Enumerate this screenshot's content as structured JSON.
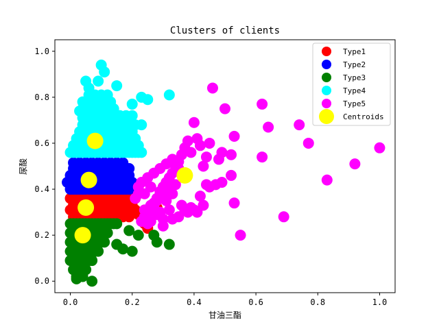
{
  "chart_data": {
    "type": "scatter",
    "title": "Clusters of clients",
    "xlabel": "甘油三酯",
    "ylabel": "尿酸",
    "xlim": [
      -0.05,
      1.05
    ],
    "ylim": [
      -0.05,
      1.05
    ],
    "xticks": [
      "0.0",
      "0.2",
      "0.4",
      "0.6",
      "0.8",
      "1.0"
    ],
    "yticks": [
      "0.0",
      "0.2",
      "0.4",
      "0.6",
      "0.8",
      "1.0"
    ],
    "grid": false,
    "legend_position": "top-right",
    "series": [
      {
        "name": "Type1",
        "color": "#ff0000",
        "x": [
          0.0,
          0.01,
          0.02,
          0.03,
          0.04,
          0.05,
          0.06,
          0.07,
          0.08,
          0.09,
          0.1,
          0.11,
          0.12,
          0.13,
          0.14,
          0.15,
          0.16,
          0.17,
          0.18,
          0.19,
          0.2,
          0.21,
          0.01,
          0.02,
          0.03,
          0.04,
          0.05,
          0.06,
          0.07,
          0.08,
          0.09,
          0.1,
          0.11,
          0.12,
          0.13,
          0.14,
          0.15,
          0.16,
          0.17,
          0.18,
          0.19,
          0.2,
          0.0,
          0.01,
          0.02,
          0.03,
          0.04,
          0.05,
          0.06,
          0.07,
          0.08,
          0.09,
          0.1,
          0.11,
          0.12,
          0.13,
          0.14,
          0.15,
          0.16,
          0.17,
          0.18,
          0.19,
          0.2,
          0.21,
          0.01,
          0.03,
          0.05,
          0.07,
          0.09,
          0.11,
          0.13,
          0.15,
          0.17,
          0.19,
          0.02,
          0.04,
          0.06,
          0.08,
          0.1,
          0.12,
          0.14,
          0.16,
          0.18,
          0.2,
          0.24,
          0.25,
          0.22,
          0.28
        ],
        "y": [
          0.36,
          0.36,
          0.36,
          0.36,
          0.36,
          0.36,
          0.36,
          0.36,
          0.36,
          0.36,
          0.36,
          0.36,
          0.36,
          0.36,
          0.36,
          0.36,
          0.36,
          0.36,
          0.36,
          0.36,
          0.36,
          0.36,
          0.33,
          0.33,
          0.33,
          0.33,
          0.33,
          0.33,
          0.33,
          0.33,
          0.33,
          0.33,
          0.33,
          0.33,
          0.33,
          0.33,
          0.33,
          0.33,
          0.33,
          0.33,
          0.33,
          0.33,
          0.31,
          0.31,
          0.31,
          0.31,
          0.31,
          0.31,
          0.31,
          0.31,
          0.31,
          0.31,
          0.31,
          0.31,
          0.31,
          0.31,
          0.31,
          0.31,
          0.31,
          0.31,
          0.31,
          0.31,
          0.31,
          0.31,
          0.28,
          0.28,
          0.28,
          0.28,
          0.28,
          0.28,
          0.28,
          0.28,
          0.28,
          0.28,
          0.38,
          0.38,
          0.38,
          0.38,
          0.38,
          0.38,
          0.38,
          0.38,
          0.38,
          0.38,
          0.25,
          0.23,
          0.29,
          0.32
        ]
      },
      {
        "name": "Type2",
        "color": "#0000ff",
        "x": [
          -0.01,
          0.01,
          0.02,
          0.03,
          0.04,
          0.05,
          0.06,
          0.07,
          0.08,
          0.09,
          0.1,
          0.11,
          0.12,
          0.13,
          0.14,
          0.15,
          0.16,
          0.17,
          0.18,
          0.19,
          0.2,
          0.0,
          0.01,
          0.02,
          0.03,
          0.04,
          0.05,
          0.06,
          0.07,
          0.08,
          0.09,
          0.1,
          0.11,
          0.12,
          0.13,
          0.14,
          0.15,
          0.16,
          0.17,
          0.18,
          0.19,
          0.0,
          0.01,
          0.02,
          0.03,
          0.04,
          0.05,
          0.06,
          0.07,
          0.08,
          0.09,
          0.1,
          0.11,
          0.12,
          0.13,
          0.14,
          0.15,
          0.16,
          0.17,
          0.18,
          0.19,
          0.01,
          0.03,
          0.05,
          0.07,
          0.09,
          0.11,
          0.13,
          0.15,
          0.17,
          0.19,
          0.01,
          0.03,
          0.05,
          0.07,
          0.09,
          0.11,
          0.13,
          0.15,
          0.17
        ],
        "y": [
          0.43,
          0.43,
          0.43,
          0.43,
          0.43,
          0.43,
          0.43,
          0.43,
          0.43,
          0.43,
          0.43,
          0.43,
          0.43,
          0.43,
          0.43,
          0.43,
          0.43,
          0.43,
          0.43,
          0.43,
          0.43,
          0.46,
          0.46,
          0.46,
          0.46,
          0.46,
          0.46,
          0.46,
          0.46,
          0.46,
          0.46,
          0.46,
          0.46,
          0.46,
          0.46,
          0.46,
          0.46,
          0.46,
          0.46,
          0.46,
          0.46,
          0.4,
          0.4,
          0.4,
          0.4,
          0.4,
          0.4,
          0.4,
          0.4,
          0.4,
          0.4,
          0.4,
          0.4,
          0.4,
          0.4,
          0.4,
          0.4,
          0.4,
          0.4,
          0.4,
          0.4,
          0.49,
          0.49,
          0.49,
          0.49,
          0.49,
          0.49,
          0.49,
          0.49,
          0.49,
          0.49,
          0.515,
          0.515,
          0.515,
          0.515,
          0.515,
          0.515,
          0.515,
          0.515,
          0.515
        ]
      },
      {
        "name": "Type3",
        "color": "#008000",
        "x": [
          0.0,
          0.01,
          0.02,
          0.03,
          0.04,
          0.05,
          0.06,
          0.07,
          0.08,
          0.09,
          0.1,
          0.11,
          0.12,
          0.13,
          0.14,
          0.15,
          0.0,
          0.01,
          0.02,
          0.03,
          0.04,
          0.05,
          0.06,
          0.07,
          0.08,
          0.09,
          0.1,
          0.11,
          0.12,
          0.0,
          0.01,
          0.02,
          0.03,
          0.04,
          0.05,
          0.06,
          0.07,
          0.08,
          0.09,
          0.1,
          0.11,
          0.0,
          0.01,
          0.02,
          0.03,
          0.04,
          0.05,
          0.06,
          0.07,
          0.08,
          0.09,
          0.0,
          0.01,
          0.02,
          0.03,
          0.04,
          0.05,
          0.06,
          0.07,
          0.01,
          0.02,
          0.03,
          0.04,
          0.05,
          0.02,
          0.03,
          0.04,
          0.02,
          0.07,
          0.19,
          0.22,
          0.27,
          0.28,
          0.32,
          0.2,
          0.17,
          0.15
        ],
        "y": [
          0.25,
          0.25,
          0.25,
          0.25,
          0.25,
          0.25,
          0.25,
          0.25,
          0.25,
          0.25,
          0.25,
          0.25,
          0.25,
          0.25,
          0.25,
          0.25,
          0.21,
          0.21,
          0.21,
          0.21,
          0.21,
          0.21,
          0.21,
          0.21,
          0.21,
          0.21,
          0.21,
          0.21,
          0.21,
          0.17,
          0.17,
          0.17,
          0.17,
          0.17,
          0.17,
          0.17,
          0.17,
          0.17,
          0.17,
          0.17,
          0.17,
          0.13,
          0.13,
          0.13,
          0.13,
          0.13,
          0.13,
          0.13,
          0.13,
          0.13,
          0.13,
          0.09,
          0.09,
          0.09,
          0.09,
          0.09,
          0.09,
          0.09,
          0.09,
          0.05,
          0.05,
          0.05,
          0.05,
          0.05,
          0.02,
          0.02,
          0.02,
          0.01,
          0.0,
          0.22,
          0.2,
          0.2,
          0.17,
          0.16,
          0.13,
          0.14,
          0.16
        ]
      },
      {
        "name": "Type4",
        "color": "#00ffff",
        "x": [
          0.0,
          0.01,
          0.02,
          0.03,
          0.04,
          0.05,
          0.06,
          0.07,
          0.08,
          0.09,
          0.1,
          0.11,
          0.12,
          0.13,
          0.14,
          0.15,
          0.16,
          0.17,
          0.18,
          0.19,
          0.2,
          0.21,
          0.22,
          0.23,
          0.01,
          0.02,
          0.03,
          0.04,
          0.05,
          0.06,
          0.07,
          0.08,
          0.09,
          0.1,
          0.11,
          0.12,
          0.13,
          0.14,
          0.15,
          0.16,
          0.17,
          0.18,
          0.19,
          0.2,
          0.21,
          0.22,
          0.02,
          0.03,
          0.04,
          0.05,
          0.06,
          0.07,
          0.08,
          0.09,
          0.1,
          0.11,
          0.12,
          0.13,
          0.14,
          0.15,
          0.16,
          0.17,
          0.18,
          0.19,
          0.2,
          0.21,
          0.03,
          0.04,
          0.05,
          0.06,
          0.07,
          0.08,
          0.09,
          0.1,
          0.11,
          0.12,
          0.13,
          0.14,
          0.15,
          0.16,
          0.17,
          0.18,
          0.19,
          0.2,
          0.04,
          0.05,
          0.06,
          0.07,
          0.08,
          0.09,
          0.1,
          0.11,
          0.12,
          0.13,
          0.15,
          0.17,
          0.19,
          0.21,
          0.23,
          0.04,
          0.05,
          0.06,
          0.07,
          0.08,
          0.09,
          0.1,
          0.11,
          0.12,
          0.14,
          0.16,
          0.18,
          0.2,
          0.03,
          0.04,
          0.06,
          0.08,
          0.1,
          0.12,
          0.14,
          0.04,
          0.05,
          0.07,
          0.09,
          0.11,
          0.13,
          0.06,
          0.08,
          0.1,
          0.12,
          0.06,
          0.09,
          0.11,
          0.05,
          0.1,
          0.2,
          0.15,
          0.25,
          0.32,
          0.23,
          0.16
        ],
        "y": [
          0.56,
          0.56,
          0.56,
          0.56,
          0.56,
          0.56,
          0.56,
          0.56,
          0.56,
          0.56,
          0.56,
          0.56,
          0.56,
          0.56,
          0.56,
          0.56,
          0.56,
          0.56,
          0.56,
          0.56,
          0.56,
          0.56,
          0.56,
          0.56,
          0.59,
          0.59,
          0.59,
          0.59,
          0.59,
          0.59,
          0.59,
          0.59,
          0.59,
          0.59,
          0.59,
          0.59,
          0.59,
          0.59,
          0.59,
          0.59,
          0.59,
          0.59,
          0.59,
          0.59,
          0.59,
          0.59,
          0.62,
          0.62,
          0.62,
          0.62,
          0.62,
          0.62,
          0.62,
          0.62,
          0.62,
          0.62,
          0.62,
          0.62,
          0.62,
          0.62,
          0.62,
          0.62,
          0.62,
          0.62,
          0.62,
          0.62,
          0.65,
          0.65,
          0.65,
          0.65,
          0.65,
          0.65,
          0.65,
          0.65,
          0.65,
          0.65,
          0.65,
          0.65,
          0.65,
          0.65,
          0.65,
          0.65,
          0.65,
          0.65,
          0.68,
          0.68,
          0.68,
          0.68,
          0.68,
          0.68,
          0.68,
          0.68,
          0.68,
          0.68,
          0.68,
          0.68,
          0.68,
          0.68,
          0.68,
          0.71,
          0.71,
          0.71,
          0.71,
          0.71,
          0.71,
          0.71,
          0.71,
          0.71,
          0.72,
          0.72,
          0.72,
          0.72,
          0.74,
          0.75,
          0.75,
          0.75,
          0.75,
          0.75,
          0.75,
          0.78,
          0.78,
          0.78,
          0.78,
          0.78,
          0.78,
          0.81,
          0.81,
          0.81,
          0.81,
          0.84,
          0.87,
          0.91,
          0.87,
          0.94,
          0.77,
          0.85,
          0.79,
          0.81,
          0.8,
          0.72
        ]
      },
      {
        "name": "Type5",
        "color": "#ff00ff",
        "x": [
          0.46,
          0.5,
          0.62,
          0.64,
          0.74,
          0.77,
          0.83,
          0.92,
          1.0,
          0.69,
          0.55,
          0.53,
          0.52,
          0.49,
          0.48,
          0.45,
          0.44,
          0.42,
          0.41,
          0.4,
          0.39,
          0.38,
          0.37,
          0.36,
          0.35,
          0.34,
          0.33,
          0.32,
          0.31,
          0.3,
          0.29,
          0.28,
          0.27,
          0.26,
          0.25,
          0.24,
          0.23,
          0.22,
          0.21,
          0.35,
          0.33,
          0.31,
          0.29,
          0.27,
          0.25,
          0.23,
          0.34,
          0.32,
          0.3,
          0.28,
          0.26,
          0.24,
          0.22,
          0.38,
          0.36,
          0.33,
          0.3,
          0.28,
          0.26,
          0.4,
          0.42,
          0.44,
          0.47,
          0.49,
          0.52,
          0.53,
          0.43,
          0.41,
          0.39,
          0.37,
          0.35,
          0.33,
          0.31,
          0.29,
          0.27,
          0.25,
          0.32,
          0.3,
          0.28,
          0.26,
          0.24,
          0.62,
          0.43,
          0.45
        ],
        "y": [
          0.84,
          0.75,
          0.77,
          0.67,
          0.68,
          0.6,
          0.44,
          0.51,
          0.58,
          0.28,
          0.2,
          0.34,
          0.46,
          0.56,
          0.53,
          0.6,
          0.54,
          0.59,
          0.62,
          0.69,
          0.56,
          0.61,
          0.58,
          0.55,
          0.52,
          0.5,
          0.47,
          0.45,
          0.43,
          0.41,
          0.39,
          0.36,
          0.34,
          0.32,
          0.3,
          0.28,
          0.26,
          0.41,
          0.36,
          0.49,
          0.53,
          0.51,
          0.49,
          0.47,
          0.45,
          0.43,
          0.42,
          0.39,
          0.37,
          0.35,
          0.33,
          0.31,
          0.38,
          0.3,
          0.33,
          0.38,
          0.24,
          0.29,
          0.26,
          0.31,
          0.37,
          0.42,
          0.42,
          0.43,
          0.55,
          0.63,
          0.33,
          0.3,
          0.32,
          0.31,
          0.28,
          0.27,
          0.35,
          0.3,
          0.33,
          0.25,
          0.31,
          0.27,
          0.36,
          0.41,
          0.38,
          0.54,
          0.5,
          0.41
        ]
      },
      {
        "name": "Centroids",
        "color": "#ffff00",
        "x": [
          0.06,
          0.08,
          0.05,
          0.04,
          0.37
        ],
        "y": [
          0.44,
          0.61,
          0.32,
          0.2,
          0.46
        ]
      }
    ]
  }
}
